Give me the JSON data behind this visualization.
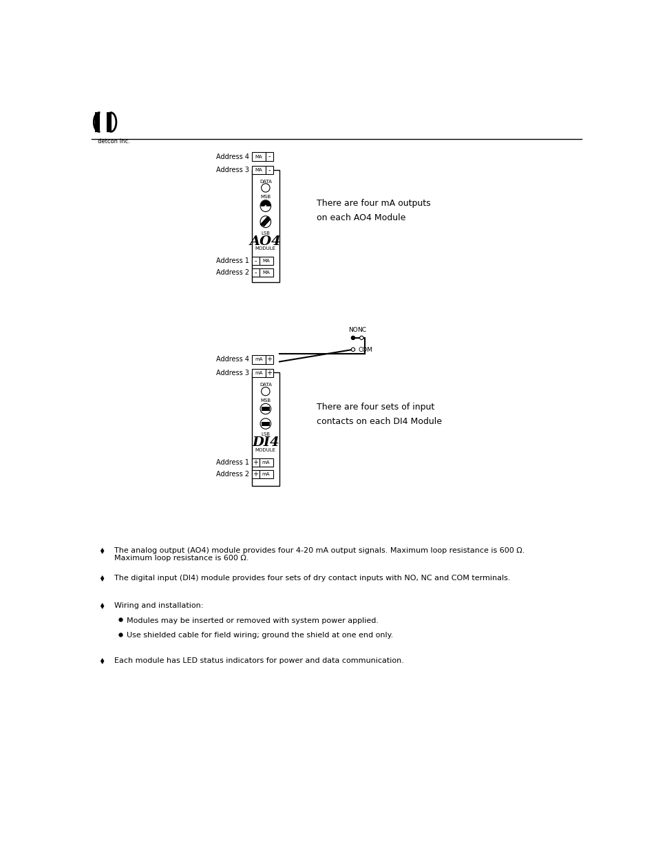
{
  "bg_color": "#ffffff",
  "logo_text": "detcon Inc.",
  "ao4_label_addr4": "Address 4",
  "ao4_label_addr3": "Address 3",
  "ao4_label_addr1": "Address 1",
  "ao4_label_addr2": "Address 2",
  "ao4_label_data": "DATA",
  "ao4_label_msb": "MSB",
  "ao4_label_lsb": "LSB",
  "ao4_note": "There are four mA outputs\non each AO4 Module",
  "di4_label_addr4": "Address 4",
  "di4_label_addr3": "Address 3",
  "di4_label_addr1": "Address 1",
  "di4_label_addr2": "Address 2",
  "di4_label_data": "DATA",
  "di4_label_msb": "MSB",
  "di4_label_lsb": "LSB",
  "di4_note": "There are four sets of input\ncontacts on each DI4 Module",
  "di4_label_no": "NO",
  "di4_label_nc": "NC",
  "di4_label_com": "COM"
}
